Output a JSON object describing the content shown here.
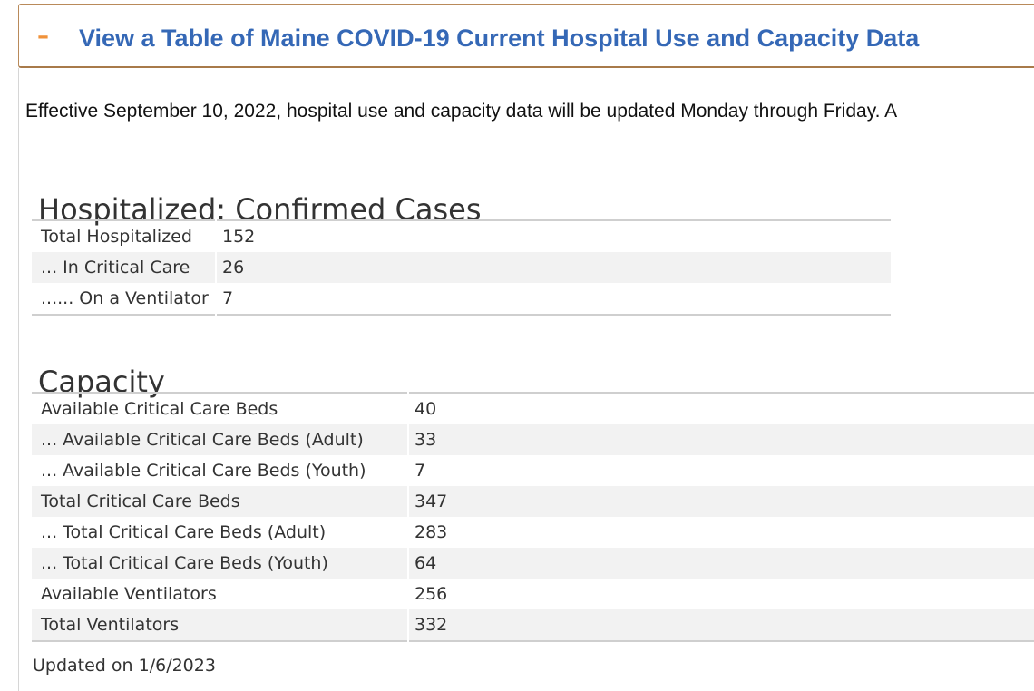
{
  "accordion": {
    "toggle_symbol": "–",
    "title": "View a Table of Maine COVID-19 Current Hospital Use and Capacity Data",
    "expanded": true,
    "toggle_color": "#f0923a",
    "title_color": "#3568b6"
  },
  "notice": "Effective September 10, 2022, hospital use and capacity data will be updated Monday through Friday. A",
  "hospitalized": {
    "title": "Hospitalized: Confirmed Cases",
    "rows": [
      {
        "label": "Total Hospitalized",
        "value": "152"
      },
      {
        "label": "... In Critical Care",
        "value": "26"
      },
      {
        "label": "...... On a Ventilator",
        "value": "7"
      }
    ]
  },
  "capacity": {
    "title": "Capacity",
    "rows": [
      {
        "label": "Available Critical Care Beds",
        "value": "40"
      },
      {
        "label": "... Available Critical Care Beds (Adult)",
        "value": "33"
      },
      {
        "label": "... Available Critical Care Beds (Youth)",
        "value": "7"
      },
      {
        "label": "Total Critical Care Beds",
        "value": "347"
      },
      {
        "label": "...  Total Critical Care Beds (Adult)",
        "value": "283"
      },
      {
        "label": "... Total Critical Care Beds (Youth)",
        "value": "64"
      },
      {
        "label": "Available Ventilators",
        "value": "256"
      },
      {
        "label": "Total Ventilators",
        "value": "332"
      }
    ]
  },
  "updated": "Updated on 1/6/2023"
}
